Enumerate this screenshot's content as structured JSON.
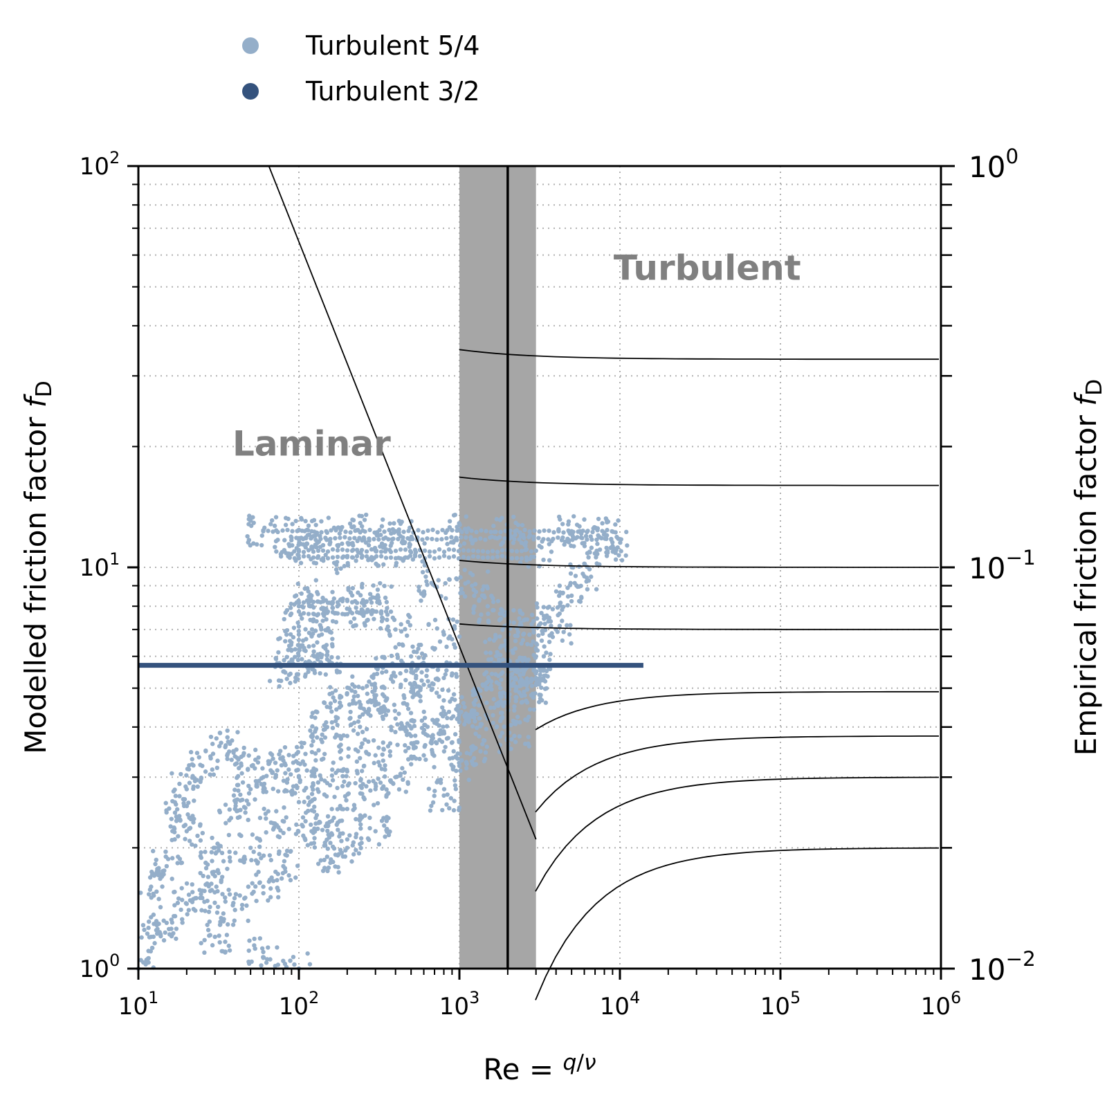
{
  "chart_data": {
    "type": "scatter",
    "xlabel": "Re = q/ν",
    "ylabel_left": "Modelled friction factor f_D",
    "ylabel_right": "Empirical friction factor f_D",
    "x_scale": "log",
    "y_scale": "log",
    "xlim": [
      10,
      1000000
    ],
    "ylim_left": [
      1,
      100
    ],
    "ylim_right": [
      0.01,
      1
    ],
    "x_ticks": [
      {
        "value": 10,
        "base": "10",
        "exp": "1"
      },
      {
        "value": 100,
        "base": "10",
        "exp": "2"
      },
      {
        "value": 1000,
        "base": "10",
        "exp": "3"
      },
      {
        "value": 10000,
        "base": "10",
        "exp": "4"
      },
      {
        "value": 100000,
        "base": "10",
        "exp": "5"
      },
      {
        "value": 1000000,
        "base": "10",
        "exp": "6"
      }
    ],
    "y_ticks_left": [
      {
        "value": 1,
        "base": "10",
        "exp": "0"
      },
      {
        "value": 10,
        "base": "10",
        "exp": "1"
      },
      {
        "value": 100,
        "base": "10",
        "exp": "2"
      }
    ],
    "y_ticks_right": [
      {
        "value": 0.01,
        "base": "10",
        "exp": "−2"
      },
      {
        "value": 0.1,
        "base": "10",
        "exp": "−1"
      },
      {
        "value": 1,
        "base": "10",
        "exp": "0"
      }
    ],
    "grid": true,
    "legend": {
      "placement": "top-left, above plot",
      "entries": [
        {
          "label": "Turbulent 5/4",
          "color": "#94aec9"
        },
        {
          "label": "Turbulent 3/2",
          "color": "#34527d"
        }
      ]
    },
    "annotations": [
      {
        "text": "Laminar",
        "x": 120,
        "y": 19,
        "color": "#808080"
      },
      {
        "text": "Turbulent",
        "x": 35000,
        "y": 52,
        "color": "#808080"
      }
    ],
    "transition_band": {
      "x_min": 1000,
      "x_max": 3000,
      "center": 2000,
      "color": "#a6a6a6"
    },
    "series": [
      {
        "name": "Turbulent 3/2",
        "kind": "line",
        "color": "#34527d",
        "x": [
          10,
          14000
        ],
        "y": [
          5.7,
          5.7
        ]
      },
      {
        "name": "Turbulent 5/4",
        "kind": "scatter-cloud",
        "color": "#94aec9",
        "points": [
          [
            10,
            1.0
          ],
          [
            12,
            1.2
          ],
          [
            15,
            1.3
          ],
          [
            20,
            1.45
          ],
          [
            30,
            1.7
          ],
          [
            50,
            2.0
          ],
          [
            70,
            2.3
          ],
          [
            100,
            2.6
          ],
          [
            150,
            2.9
          ],
          [
            200,
            3.1
          ],
          [
            300,
            3.4
          ],
          [
            500,
            3.8
          ],
          [
            700,
            4.1
          ],
          [
            1000,
            4.5
          ],
          [
            1500,
            5.0
          ],
          [
            2000,
            5.4
          ],
          [
            2500,
            5.6
          ],
          [
            12,
            1.6
          ],
          [
            15,
            1.8
          ],
          [
            20,
            2.2
          ],
          [
            25,
            1.5
          ],
          [
            30,
            2.0
          ],
          [
            40,
            2.5
          ],
          [
            50,
            2.8
          ],
          [
            60,
            3.0
          ],
          [
            80,
            3.3
          ],
          [
            100,
            3.0
          ],
          [
            120,
            3.6
          ],
          [
            150,
            4.0
          ],
          [
            200,
            3.8
          ],
          [
            250,
            4.3
          ],
          [
            300,
            4.6
          ],
          [
            400,
            4.2
          ],
          [
            500,
            4.9
          ],
          [
            600,
            5.1
          ],
          [
            800,
            5.3
          ],
          [
            30,
            1.2
          ],
          [
            40,
            1.4
          ],
          [
            60,
            1.6
          ],
          [
            80,
            1.8
          ],
          [
            120,
            2.2
          ],
          [
            150,
            2.3
          ],
          [
            200,
            2.5
          ],
          [
            300,
            2.8
          ],
          [
            400,
            3.0
          ],
          [
            600,
            3.4
          ],
          [
            800,
            3.9
          ],
          [
            1200,
            4.4
          ],
          [
            1800,
            5.0
          ],
          [
            2200,
            4.5
          ],
          [
            2800,
            5.2
          ],
          [
            1500,
            4.2
          ],
          [
            80,
            5.5
          ],
          [
            90,
            6.2
          ],
          [
            100,
            6.8
          ],
          [
            110,
            5.8
          ],
          [
            130,
            6.5
          ],
          [
            150,
            5.9
          ],
          [
            100,
            8.0
          ],
          [
            120,
            8.5
          ],
          [
            150,
            7.7
          ],
          [
            200,
            8.3
          ],
          [
            250,
            7.8
          ],
          [
            300,
            8.4
          ],
          [
            90,
            10.8
          ],
          [
            120,
            11.2
          ],
          [
            200,
            10.6
          ],
          [
            300,
            11.0
          ],
          [
            500,
            10.9
          ],
          [
            60,
            12.3
          ],
          [
            100,
            12.4
          ],
          [
            150,
            12.2
          ],
          [
            250,
            12.35
          ],
          [
            400,
            12.3
          ],
          [
            1000,
            12.4
          ],
          [
            2000,
            12.3
          ],
          [
            5000,
            12.3
          ],
          [
            8000,
            12.2
          ],
          [
            1200,
            9.0
          ],
          [
            1500,
            8.0
          ],
          [
            2000,
            7.2
          ],
          [
            2500,
            6.8
          ],
          [
            1800,
            6.3
          ],
          [
            3000,
            6.0
          ],
          [
            3500,
            7.5
          ],
          [
            4000,
            7.0
          ],
          [
            5000,
            8.5
          ],
          [
            6000,
            9.5
          ],
          [
            3000,
            11.0
          ],
          [
            6000,
            11.5
          ],
          [
            9000,
            11.3
          ],
          [
            700,
            9.0
          ],
          [
            800,
            6.8
          ],
          [
            400,
            7.0
          ],
          [
            500,
            6.0
          ],
          [
            250,
            5.0
          ],
          [
            350,
            5.5
          ],
          [
            180,
            4.6
          ],
          [
            20,
            2.8
          ],
          [
            25,
            3.2
          ],
          [
            35,
            3.6
          ],
          [
            18,
            2.4
          ],
          [
            45,
            3.4
          ],
          [
            150,
            1.9
          ],
          [
            200,
            2.0
          ],
          [
            300,
            2.2
          ],
          [
            60,
            1.1
          ],
          [
            100,
            1.0
          ],
          [
            800,
            2.7
          ],
          [
            1000,
            3.2
          ],
          [
            1200,
            3.5
          ],
          [
            2200,
            3.8
          ],
          [
            2800,
            4.8
          ],
          [
            3000,
            5.3
          ]
        ]
      }
    ],
    "reference_curves": {
      "laminar": {
        "color": "#000000",
        "x": [
          65,
          3000
        ],
        "y": [
          100,
          2.1
        ]
      },
      "turbulent_asymptotes_right_axis": [
        0.33,
        0.16,
        0.1,
        0.07,
        0.049,
        0.038,
        0.03,
        0.02
      ],
      "color": "#000000"
    }
  }
}
